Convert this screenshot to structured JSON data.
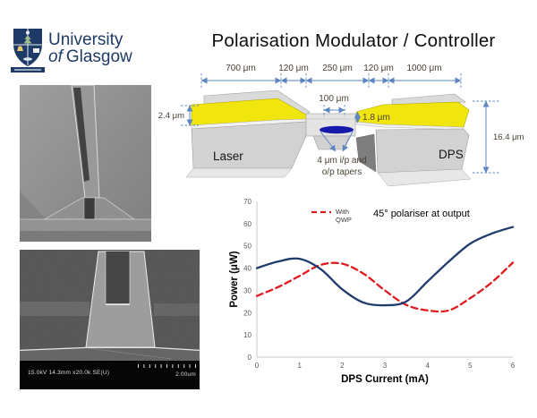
{
  "logo": {
    "institution_line1": "University",
    "institution_line2_prefix": "of",
    "institution_line2_name": "Glasgow",
    "brand_navy": "#1e3a66"
  },
  "title": "Polarisation Modulator / Controller",
  "schematic": {
    "top_dimensions": [
      "700 μm",
      "120 μm",
      "250 μm",
      "120 μm",
      "1000 μm"
    ],
    "center_width_label": "100 μm",
    "left_height_label": "2.4 μm",
    "bridge_height_label": "1.8 μm",
    "total_height_label": "16.4 μm",
    "taper_note": [
      "4 μm i/p and",
      "o/p tapers"
    ],
    "laser_label": "Laser",
    "dps_label": "DPS",
    "colors": {
      "contact_yellow": "#f0e50c",
      "dimension_blue": "#5e87c2",
      "waveguide_blue": "#1418ab"
    }
  },
  "sem_bottom": {
    "status_text": "15.0kV 14.3mm x20.0k SE(U)",
    "scale_text": "2.00um"
  },
  "chart_data": {
    "type": "line",
    "annotation": "45° polariser at output",
    "xlabel": "DPS Current (mA)",
    "ylabel": "Power (μW)",
    "xlim": [
      0,
      6
    ],
    "ylim": [
      0,
      70
    ],
    "xticks": [
      0,
      1,
      2,
      3,
      4,
      5,
      6
    ],
    "yticks": [
      0,
      10,
      20,
      30,
      40,
      50,
      60,
      70
    ],
    "grid": false,
    "legend_position": "top-inside",
    "x": [
      0,
      0.5,
      1,
      1.5,
      2,
      2.5,
      3,
      3.5,
      4,
      4.5,
      5,
      5.5,
      6
    ],
    "series": [
      {
        "name": "With QWP",
        "legend_lines": [
          "With",
          "QWP"
        ],
        "color": "#e01b1f",
        "style": "dashed",
        "values": [
          27.5,
          31.5,
          36.5,
          41.5,
          42,
          37.5,
          30,
          23.5,
          21,
          21,
          26.5,
          33.5,
          42.5
        ]
      },
      {
        "name": "",
        "legend_lines": [],
        "color": "#1f3c6d",
        "style": "solid",
        "values": [
          40,
          43,
          44.2,
          39.5,
          30.5,
          24.5,
          23.3,
          25,
          34,
          43,
          51,
          55.5,
          58.5
        ]
      }
    ]
  }
}
